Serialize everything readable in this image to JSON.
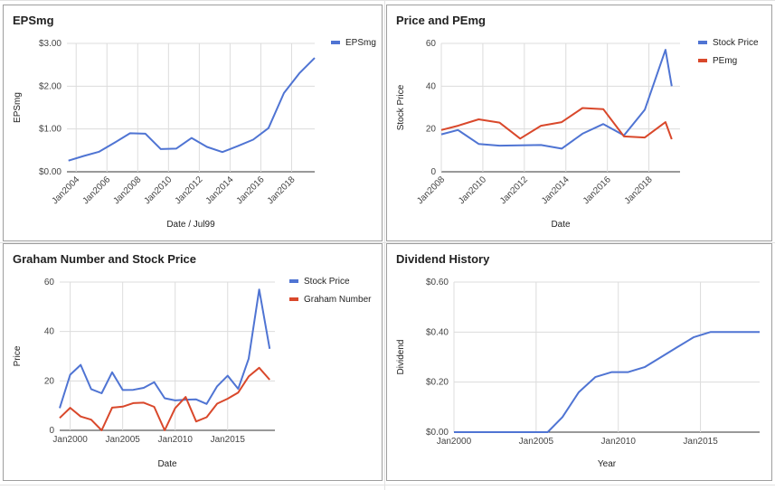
{
  "colors": {
    "blue": "#4f74d3",
    "red": "#d9482b",
    "grid": "#dcdcdc",
    "axis": "#333333"
  },
  "chart_data": [
    {
      "type": "line",
      "title": "EPSmg",
      "xlabel": "Date / Jul99",
      "ylabel": "EPSmg",
      "xlim": [
        2003.4,
        2019.5
      ],
      "ylim": [
        0,
        3
      ],
      "yticks": [
        0,
        1,
        2,
        3
      ],
      "yticklabels": [
        "$0.00",
        "$1.00",
        "$2.00",
        "$3.00"
      ],
      "xticks": [
        2004,
        2006,
        2008,
        2010,
        2012,
        2014,
        2016,
        2018
      ],
      "xticklabels": [
        "Jan2004",
        "Jan2006",
        "Jan2008",
        "Jan2010",
        "Jan2012",
        "Jan2014",
        "Jan2016",
        "Jan2018"
      ],
      "xtick_rotate": true,
      "legend": "right",
      "series": [
        {
          "name": "EPSmg",
          "color": "#4f74d3",
          "x": [
            2003.5,
            2004.5,
            2005.5,
            2006.5,
            2007.5,
            2008.5,
            2009.5,
            2010.5,
            2011.5,
            2012.5,
            2013.5,
            2014.5,
            2015.5,
            2016.5,
            2017.5,
            2018.5,
            2019.5
          ],
          "y": [
            0.26,
            0.37,
            0.47,
            0.68,
            0.9,
            0.89,
            0.53,
            0.54,
            0.79,
            0.58,
            0.46,
            0.6,
            0.75,
            1.02,
            1.84,
            2.3,
            2.66
          ]
        }
      ]
    },
    {
      "type": "line",
      "title": "Price and PEmg",
      "xlabel": "Date",
      "ylabel": "Stock Price",
      "xlim": [
        2008,
        2019.5
      ],
      "ylim": [
        0,
        60
      ],
      "yticks": [
        0,
        20,
        40,
        60
      ],
      "yticklabels": [
        "0",
        "20",
        "40",
        "60"
      ],
      "xticks": [
        2008,
        2010,
        2012,
        2014,
        2016,
        2018
      ],
      "xticklabels": [
        "Jan2008",
        "Jan2010",
        "Jan2012",
        "Jan2014",
        "Jan2016",
        "Jan2018"
      ],
      "xtick_rotate": true,
      "legend": "right",
      "series": [
        {
          "name": "Stock Price",
          "color": "#4f74d3",
          "x": [
            2008,
            2008.8,
            2009.8,
            2010.8,
            2011.8,
            2012.8,
            2013.8,
            2014.8,
            2015.8,
            2016.8,
            2017.8,
            2018.8,
            2019.1
          ],
          "y": [
            17.5,
            19.5,
            13,
            12.2,
            12.4,
            12.5,
            10.8,
            17.8,
            22.3,
            17,
            29,
            57,
            40
          ]
        },
        {
          "name": "PEmg",
          "color": "#d9482b",
          "x": [
            2008,
            2008.8,
            2009.8,
            2010.8,
            2011.8,
            2012.8,
            2013.8,
            2014.8,
            2015.8,
            2016.8,
            2017.8,
            2018.8,
            2019.1
          ],
          "y": [
            19.5,
            21.5,
            24.5,
            23,
            15.5,
            21.5,
            23.2,
            29.8,
            29.3,
            16.5,
            16,
            23.2,
            15.2
          ]
        }
      ]
    },
    {
      "type": "line",
      "title": "Graham Number and Stock Price",
      "xlabel": "Date",
      "ylabel": "Price",
      "xlim": [
        1999,
        2019.5
      ],
      "ylim": [
        0,
        60
      ],
      "yticks": [
        0,
        20,
        40,
        60
      ],
      "yticklabels": [
        "0",
        "20",
        "40",
        "60"
      ],
      "xticks": [
        2000,
        2005,
        2010,
        2015
      ],
      "xticklabels": [
        "Jan2000",
        "Jan2005",
        "Jan2010",
        "Jan2015"
      ],
      "xtick_rotate": false,
      "legend": "right",
      "series": [
        {
          "name": "Stock Price",
          "color": "#4f74d3",
          "x": [
            1999,
            2000,
            2001,
            2002,
            2003,
            2004,
            2005,
            2006,
            2007,
            2008,
            2009,
            2010,
            2011,
            2012,
            2013,
            2014,
            2015,
            2016,
            2017,
            2018,
            2019
          ],
          "y": [
            9,
            22.5,
            26.5,
            16.7,
            15,
            23.5,
            16.3,
            16.4,
            17.2,
            19.5,
            13,
            12.1,
            12.4,
            12.5,
            10.7,
            17.8,
            22.1,
            16.8,
            29,
            57,
            33
          ]
        },
        {
          "name": "Graham Number",
          "color": "#d9482b",
          "x": [
            1999,
            2000,
            2001,
            2002,
            2003,
            2004,
            2005,
            2006,
            2007,
            2008,
            2009,
            2010,
            2011,
            2012,
            2013,
            2014,
            2015,
            2016,
            2017,
            2018,
            2019
          ],
          "y": [
            5,
            9.1,
            5.6,
            4.3,
            0,
            9.2,
            9.6,
            11,
            11.2,
            9.5,
            0,
            9,
            13.5,
            3.6,
            5.3,
            10.8,
            12.8,
            15.3,
            21.8,
            25.3,
            20.5
          ]
        }
      ]
    },
    {
      "type": "line",
      "title": "Dividend History",
      "xlabel": "Year",
      "ylabel": "Dividend",
      "xlim": [
        2000,
        2018.6
      ],
      "ylim": [
        0,
        0.6
      ],
      "yticks": [
        0,
        0.2,
        0.4,
        0.6
      ],
      "yticklabels": [
        "$0.00",
        "$0.20",
        "$0.40",
        "$0.60"
      ],
      "xticks": [
        2000,
        2005,
        2010,
        2015
      ],
      "xticklabels": [
        "Jan2000",
        "Jan2005",
        "Jan2010",
        "Jan2015"
      ],
      "xtick_rotate": false,
      "legend": "none",
      "series": [
        {
          "name": "",
          "color": "#4f74d3",
          "x": [
            2000,
            2005.7,
            2006.6,
            2007.6,
            2008.6,
            2009.6,
            2010.6,
            2011.6,
            2012.6,
            2013.6,
            2014.6,
            2015.6,
            2016.6,
            2017.6,
            2018.6
          ],
          "y": [
            0,
            0,
            0.06,
            0.16,
            0.22,
            0.24,
            0.24,
            0.26,
            0.3,
            0.34,
            0.38,
            0.4,
            0.4,
            0.4,
            0.4
          ]
        }
      ]
    }
  ]
}
